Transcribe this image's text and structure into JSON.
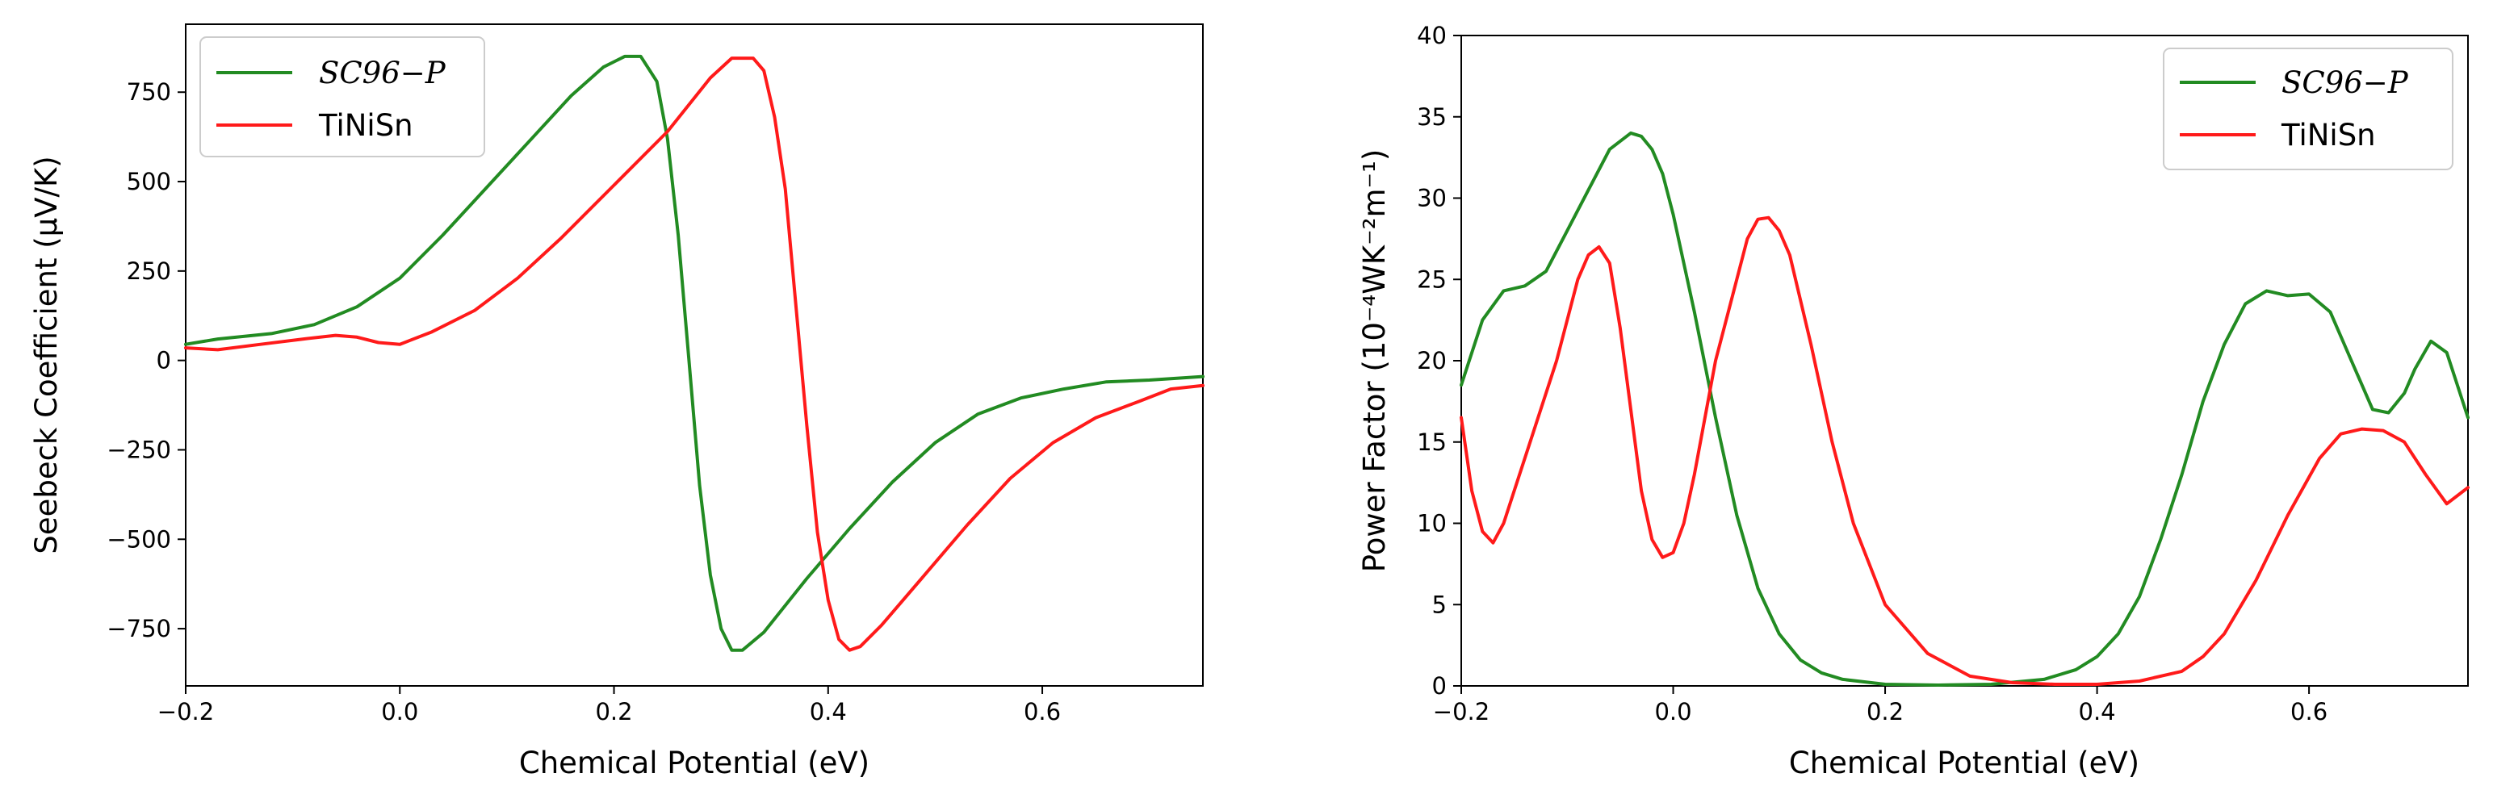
{
  "colors": {
    "green": "#228B22",
    "red": "#FF1A1A",
    "axis": "#000000",
    "legend_border": "#cccccc"
  },
  "chart_data": [
    {
      "type": "line",
      "title": "",
      "xlabel": "Chemical Potential (eV)",
      "ylabel": "Seebeck Coefficient (μV/K)",
      "xlim": [
        -0.2,
        0.75
      ],
      "ylim": [
        -910,
        940
      ],
      "xticks": [
        -0.2,
        0.0,
        0.2,
        0.4,
        0.6
      ],
      "xtick_labels": [
        "−0.2",
        "0.0",
        "0.2",
        "0.4",
        "0.6"
      ],
      "yticks": [
        -750,
        -500,
        -250,
        0,
        250,
        500,
        750
      ],
      "ytick_labels": [
        "−750",
        "−500",
        "−250",
        "0",
        "250",
        "500",
        "750"
      ],
      "legend_position": "upper-left",
      "legend": [
        "SC96−P",
        "TiNiSn"
      ],
      "series": [
        {
          "name": "SC96−P",
          "color": "#228B22",
          "x": [
            -0.2,
            -0.17,
            -0.12,
            -0.08,
            -0.04,
            0.0,
            0.04,
            0.08,
            0.12,
            0.16,
            0.19,
            0.21,
            0.225,
            0.24,
            0.25,
            0.26,
            0.27,
            0.28,
            0.29,
            0.3,
            0.31,
            0.32,
            0.34,
            0.38,
            0.42,
            0.46,
            0.5,
            0.54,
            0.58,
            0.62,
            0.66,
            0.7,
            0.75
          ],
          "y": [
            45,
            60,
            75,
            100,
            150,
            230,
            350,
            480,
            610,
            740,
            820,
            850,
            850,
            780,
            620,
            350,
            0,
            -350,
            -600,
            -750,
            -810,
            -810,
            -760,
            -610,
            -470,
            -340,
            -230,
            -150,
            -105,
            -80,
            -60,
            -55,
            -45
          ]
        },
        {
          "name": "TiNiSn",
          "color": "#FF1A1A",
          "x": [
            -0.2,
            -0.17,
            -0.13,
            -0.09,
            -0.06,
            -0.04,
            -0.02,
            0.0,
            0.03,
            0.07,
            0.11,
            0.15,
            0.2,
            0.25,
            0.29,
            0.31,
            0.33,
            0.34,
            0.35,
            0.36,
            0.37,
            0.38,
            0.39,
            0.4,
            0.41,
            0.42,
            0.43,
            0.45,
            0.49,
            0.53,
            0.57,
            0.61,
            0.65,
            0.69,
            0.72,
            0.75
          ],
          "y": [
            35,
            30,
            45,
            60,
            70,
            65,
            50,
            45,
            80,
            140,
            230,
            340,
            490,
            640,
            790,
            845,
            845,
            810,
            680,
            480,
            150,
            -180,
            -480,
            -670,
            -780,
            -810,
            -800,
            -740,
            -600,
            -460,
            -330,
            -230,
            -160,
            -115,
            -80,
            -70
          ]
        }
      ]
    },
    {
      "type": "line",
      "title": "",
      "xlabel": "Chemical Potential (eV)",
      "ylabel": "Power Factor (10⁻⁴WK⁻²m⁻¹)",
      "xlim": [
        -0.2,
        0.75
      ],
      "ylim": [
        0,
        40
      ],
      "xticks": [
        -0.2,
        0.0,
        0.2,
        0.4,
        0.6
      ],
      "xtick_labels": [
        "−0.2",
        "0.0",
        "0.2",
        "0.4",
        "0.6"
      ],
      "yticks": [
        0,
        5,
        10,
        15,
        20,
        25,
        30,
        35,
        40
      ],
      "ytick_labels": [
        "0",
        "5",
        "10",
        "15",
        "20",
        "25",
        "30",
        "35",
        "40"
      ],
      "legend_position": "upper-right",
      "legend": [
        "SC96−P",
        "TiNiSn"
      ],
      "series": [
        {
          "name": "SC96−P",
          "color": "#228B22",
          "x": [
            -0.2,
            -0.18,
            -0.16,
            -0.14,
            -0.12,
            -0.1,
            -0.08,
            -0.06,
            -0.04,
            -0.03,
            -0.02,
            -0.01,
            0.0,
            0.02,
            0.04,
            0.06,
            0.08,
            0.1,
            0.12,
            0.14,
            0.16,
            0.2,
            0.25,
            0.3,
            0.35,
            0.38,
            0.4,
            0.42,
            0.44,
            0.46,
            0.48,
            0.5,
            0.52,
            0.54,
            0.56,
            0.58,
            0.6,
            0.62,
            0.64,
            0.66,
            0.675,
            0.69,
            0.7,
            0.715,
            0.73,
            0.75
          ],
          "y": [
            18.5,
            22.5,
            24.3,
            24.6,
            25.5,
            28,
            30.5,
            33,
            34,
            33.8,
            33,
            31.5,
            29,
            23,
            16.5,
            10.5,
            6,
            3.2,
            1.6,
            0.8,
            0.4,
            0.1,
            0.05,
            0.1,
            0.4,
            1.0,
            1.8,
            3.2,
            5.5,
            9,
            13,
            17.5,
            21,
            23.5,
            24.3,
            24,
            24.1,
            23,
            20,
            17,
            16.8,
            18,
            19.5,
            21.2,
            20.5,
            16.5
          ]
        },
        {
          "name": "TiNiSn",
          "color": "#FF1A1A",
          "x": [
            -0.2,
            -0.19,
            -0.18,
            -0.17,
            -0.16,
            -0.15,
            -0.13,
            -0.11,
            -0.09,
            -0.08,
            -0.07,
            -0.06,
            -0.05,
            -0.04,
            -0.03,
            -0.02,
            -0.01,
            0.0,
            0.01,
            0.02,
            0.04,
            0.06,
            0.07,
            0.08,
            0.09,
            0.1,
            0.11,
            0.13,
            0.15,
            0.17,
            0.2,
            0.24,
            0.28,
            0.32,
            0.36,
            0.4,
            0.44,
            0.48,
            0.5,
            0.52,
            0.55,
            0.58,
            0.61,
            0.63,
            0.65,
            0.67,
            0.69,
            0.71,
            0.73,
            0.75
          ],
          "y": [
            16.5,
            12,
            9.5,
            8.8,
            10,
            12,
            16,
            20,
            25,
            26.5,
            27,
            26,
            22,
            17,
            12,
            9,
            7.9,
            8.2,
            10,
            13,
            20,
            25,
            27.5,
            28.7,
            28.8,
            28,
            26.5,
            21,
            15,
            10,
            5,
            2,
            0.6,
            0.2,
            0.1,
            0.1,
            0.3,
            0.9,
            1.8,
            3.2,
            6.5,
            10.5,
            14,
            15.5,
            15.8,
            15.7,
            15,
            13,
            11.2,
            12.2
          ]
        }
      ]
    }
  ]
}
